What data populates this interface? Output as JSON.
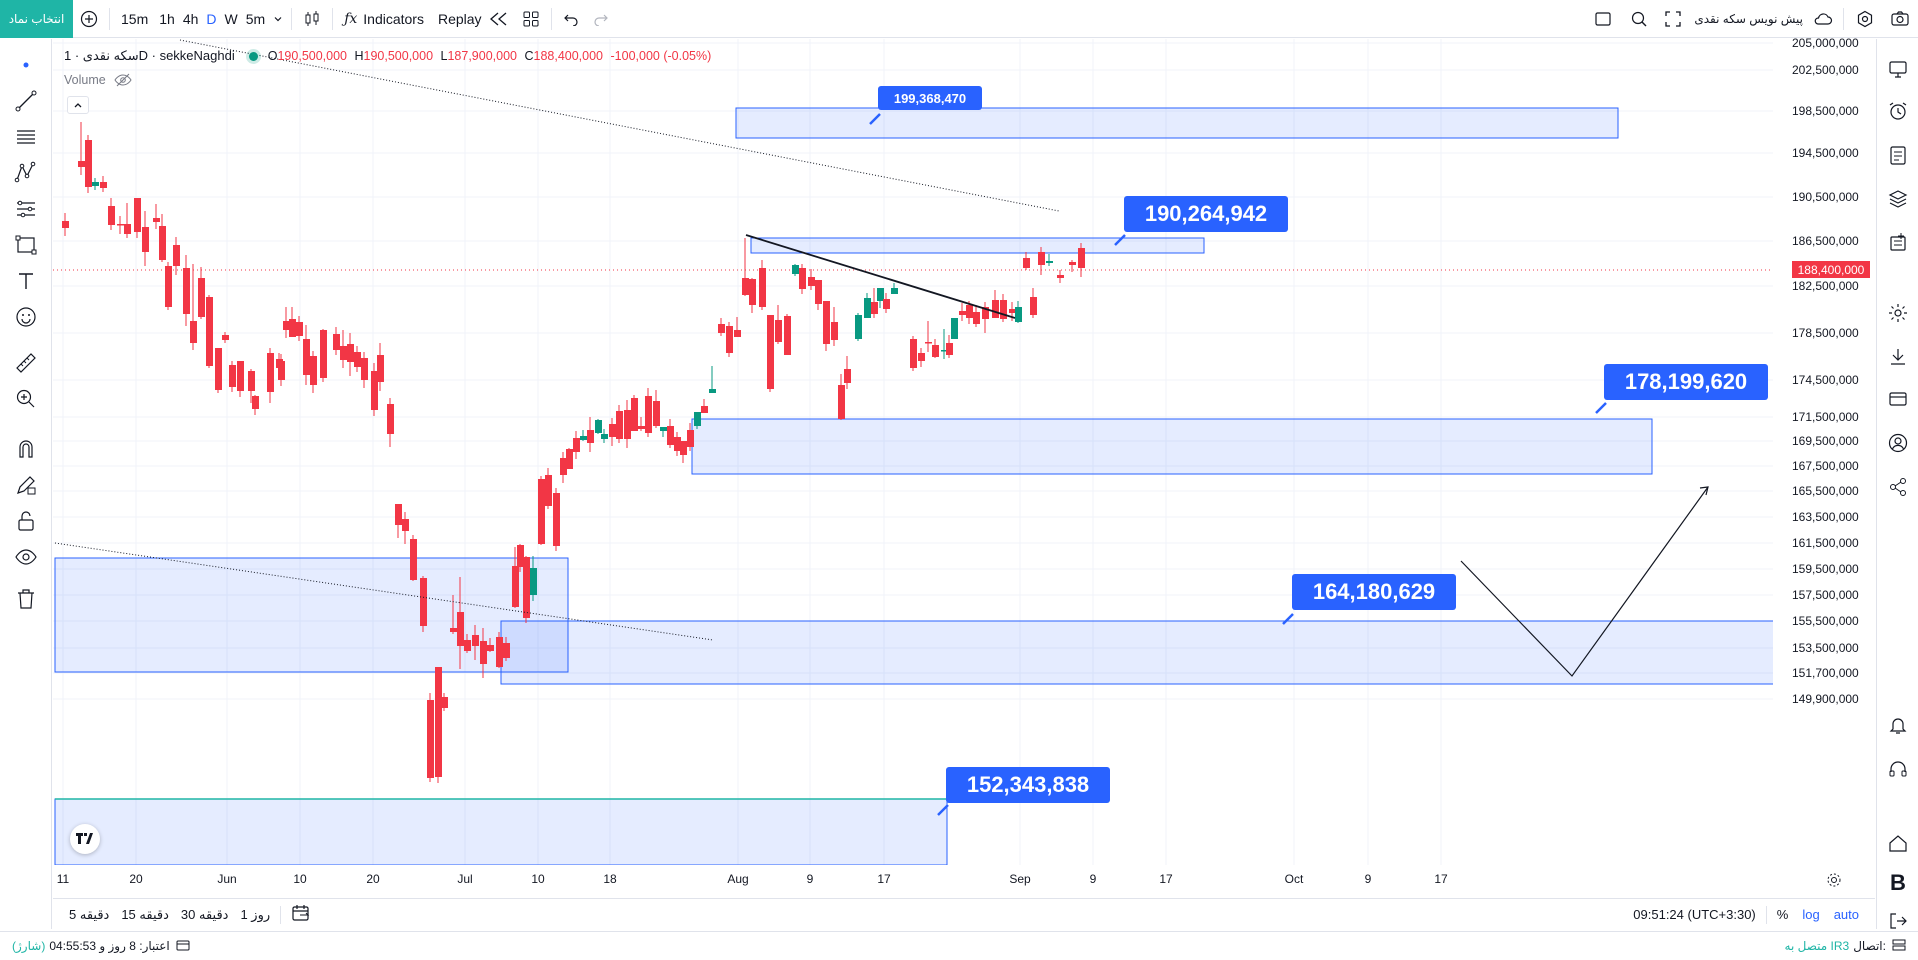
{
  "topbar": {
    "symbol_button": "انتخاب نماد",
    "timeframes": [
      "15m",
      "1h",
      "4h",
      "D",
      "W",
      "5m"
    ],
    "active_timeframe": "D",
    "indicators_label": "Indicators",
    "replay_label": "Replay",
    "chart_title": "پیش نویس سکه نقدی"
  },
  "legend": {
    "symbol": "سکه نقدی · 1D · sekkeNaghdi",
    "open": "190,500,000",
    "high": "190,500,000",
    "low": "187,900,000",
    "close": "188,400,000",
    "change": "-100,000 (-0.05%)",
    "volume_label": "Volume",
    "o": "O",
    "h": "H",
    "l": "L",
    "c": "C"
  },
  "price_axis": {
    "labels": [
      "205,000,000",
      "202,500,000",
      "198,500,000",
      "194,500,000",
      "190,500,000",
      "186,500,000",
      "182,500,000",
      "178,500,000",
      "174,500,000",
      "171,500,000",
      "169,500,000",
      "167,500,000",
      "165,500,000",
      "163,500,000",
      "161,500,000",
      "159,500,000",
      "157,500,000",
      "155,500,000",
      "153,500,000",
      "151,700,000",
      "149,900,000"
    ],
    "current_price": "188,400,000"
  },
  "time_axis": {
    "labels": [
      "11",
      "20",
      "Jun",
      "10",
      "20",
      "Jul",
      "10",
      "18",
      "Aug",
      "9",
      "17",
      "Sep",
      "9",
      "17",
      "Oct",
      "9",
      "17"
    ]
  },
  "callouts": {
    "c1": "199,368,470",
    "c2": "190,264,942",
    "c3": "178,199,620",
    "c4": "164,180,629",
    "c5": "152,343,838"
  },
  "bottombar": {
    "ranges": [
      "5 دقیقه",
      "15 دقیقه",
      "30 دقیقه",
      "1 روز"
    ],
    "clock": "09:51:24 (UTC+3:30)",
    "percent": "%",
    "log": "log",
    "auto": "auto"
  },
  "statusbar": {
    "left_text": "اعتبار: 8 روز و 04:55:53",
    "left_extra": "(شارژ)",
    "right_label": "اتصال:",
    "right_value": "متصل به IR3"
  },
  "colors": {
    "up": "#089981",
    "down": "#f23645",
    "accent": "#2962ff",
    "zone": "#2962ff"
  },
  "chart_data": {
    "type": "candlestick",
    "symbol": "sekkeNaghdi",
    "interval": "1D",
    "ylim": [
      149900000,
      205000000
    ],
    "last_close": 188400000,
    "annotations": [
      199368470,
      190264942,
      178199620,
      164180629,
      152343838
    ]
  }
}
